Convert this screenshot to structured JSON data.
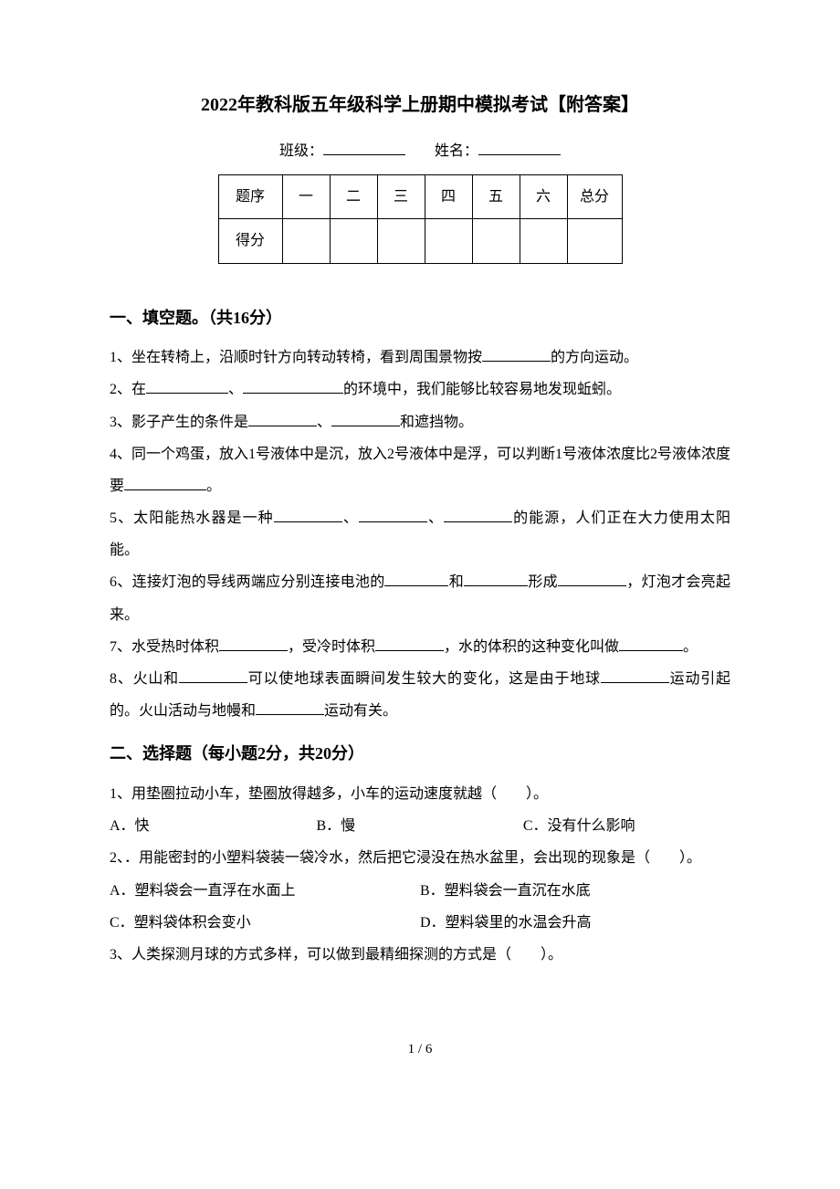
{
  "title": "2022年教科版五年级科学上册期中模拟考试【附答案】",
  "header": {
    "class_label": "班级：",
    "name_label": "姓名："
  },
  "score_table": {
    "row1_label": "题序",
    "cols": [
      "一",
      "二",
      "三",
      "四",
      "五",
      "六"
    ],
    "total_label": "总分",
    "row2_label": "得分"
  },
  "section1": {
    "heading": "一、填空题。（共16分）",
    "q1_a": "1、坐在转椅上，沿顺时针方向转动转椅，看到周围景物按",
    "q1_b": "的方向运动。",
    "q2_a": "2、在",
    "q2_b": "、",
    "q2_c": "的环境中，我们能够比较容易地发现蚯蚓。",
    "q3_a": "3、影子产生的条件是",
    "q3_b": "、",
    "q3_c": "和遮挡物。",
    "q4_a": "4、同一个鸡蛋，放入1号液体中是沉，放入2号液体中是浮，可以判断1号液体浓度比2号液体浓度要",
    "q4_b": "。",
    "q5_a": "5、太阳能热水器是一种",
    "q5_b": "、",
    "q5_c": "、",
    "q5_d": "的能源，人们正在大力使用太阳能。",
    "q6_a": "6、连接灯泡的导线两端应分别连接电池的",
    "q6_b": "和",
    "q6_c": "形成",
    "q6_d": "，灯泡才会亮起来。",
    "q7_a": "7、水受热时体积",
    "q7_b": "，受冷时体积",
    "q7_c": "，水的体积的这种变化叫做",
    "q7_d": "。",
    "q8_a": "8、火山和",
    "q8_b": "可以使地球表面瞬间发生较大的变化，这是由于地球",
    "q8_c": "运动引起的。火山活动与地幔和",
    "q8_d": "运动有关。"
  },
  "section2": {
    "heading": "二、选择题（每小题2分，共20分）",
    "q1": "1、用垫圈拉动小车，垫圈放得越多，小车的运动速度就越（　　）。",
    "q1_opts": [
      "A．快",
      "B．慢",
      "C．没有什么影响"
    ],
    "q2": "2、．用能密封的小塑料袋装一袋冷水，然后把它浸没在热水盆里，会出现的现象是（　　）。",
    "q2_opts": [
      "A．塑料袋会一直浮在水面上",
      "B．塑料袋会一直沉在水底",
      "C．塑料袋体积会变小",
      "D．塑料袋里的水温会升高"
    ],
    "q3": "3、人类探测月球的方式多样，可以做到最精细探测的方式是（　　）。"
  },
  "footer": "1 / 6",
  "blanks": {
    "w60": 60,
    "w70": 70,
    "w75": 75,
    "w80": 80,
    "w90": 90,
    "w95": 95,
    "w100": 100,
    "w110": 110
  }
}
